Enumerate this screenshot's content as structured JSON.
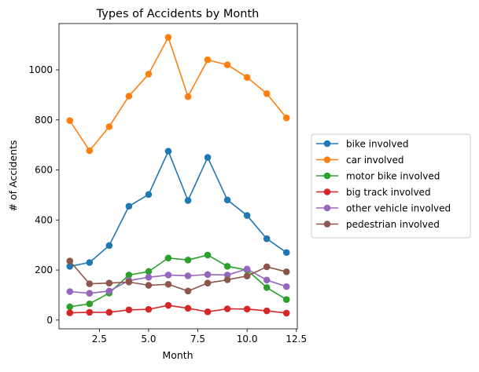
{
  "chart_data": {
    "type": "line",
    "title": "Types of Accidents by Month",
    "xlabel": "Month",
    "ylabel": "# of Accidents",
    "x": [
      1,
      2,
      3,
      4,
      5,
      6,
      7,
      8,
      9,
      10,
      11,
      12
    ],
    "xlim": [
      0.45,
      12.55
    ],
    "ylim": [
      -35,
      1185
    ],
    "xticks": [
      2.5,
      5.0,
      7.5,
      10.0,
      12.5
    ],
    "xtick_labels": [
      "2.5",
      "5.0",
      "7.5",
      "10.0",
      "12.5"
    ],
    "yticks": [
      0,
      200,
      400,
      600,
      800,
      1000
    ],
    "ytick_labels": [
      "0",
      "200",
      "400",
      "600",
      "800",
      "1000"
    ],
    "grid": false,
    "legend_position": "outside-right",
    "series": [
      {
        "name": "bike involved",
        "color": "#1f77b4",
        "values": [
          215,
          230,
          298,
          455,
          502,
          675,
          478,
          650,
          480,
          418,
          325,
          270
        ]
      },
      {
        "name": "car involved",
        "color": "#ff7f0e",
        "values": [
          797,
          677,
          773,
          895,
          983,
          1130,
          893,
          1040,
          1020,
          970,
          905,
          808
        ]
      },
      {
        "name": "motor bike involved",
        "color": "#2ca02c",
        "values": [
          53,
          65,
          108,
          180,
          194,
          248,
          240,
          260,
          215,
          200,
          130,
          82
        ]
      },
      {
        "name": "big track involved",
        "color": "#d62728",
        "values": [
          29,
          31,
          31,
          41,
          43,
          59,
          47,
          33,
          45,
          44,
          37,
          28
        ]
      },
      {
        "name": "other vehicle involved",
        "color": "#9467bd",
        "values": [
          114,
          107,
          116,
          158,
          171,
          180,
          177,
          182,
          180,
          204,
          160,
          134
        ]
      },
      {
        "name": "pedestrian involved",
        "color": "#8c564b",
        "values": [
          236,
          145,
          148,
          152,
          139,
          143,
          116,
          148,
          161,
          176,
          213,
          193
        ]
      }
    ]
  }
}
